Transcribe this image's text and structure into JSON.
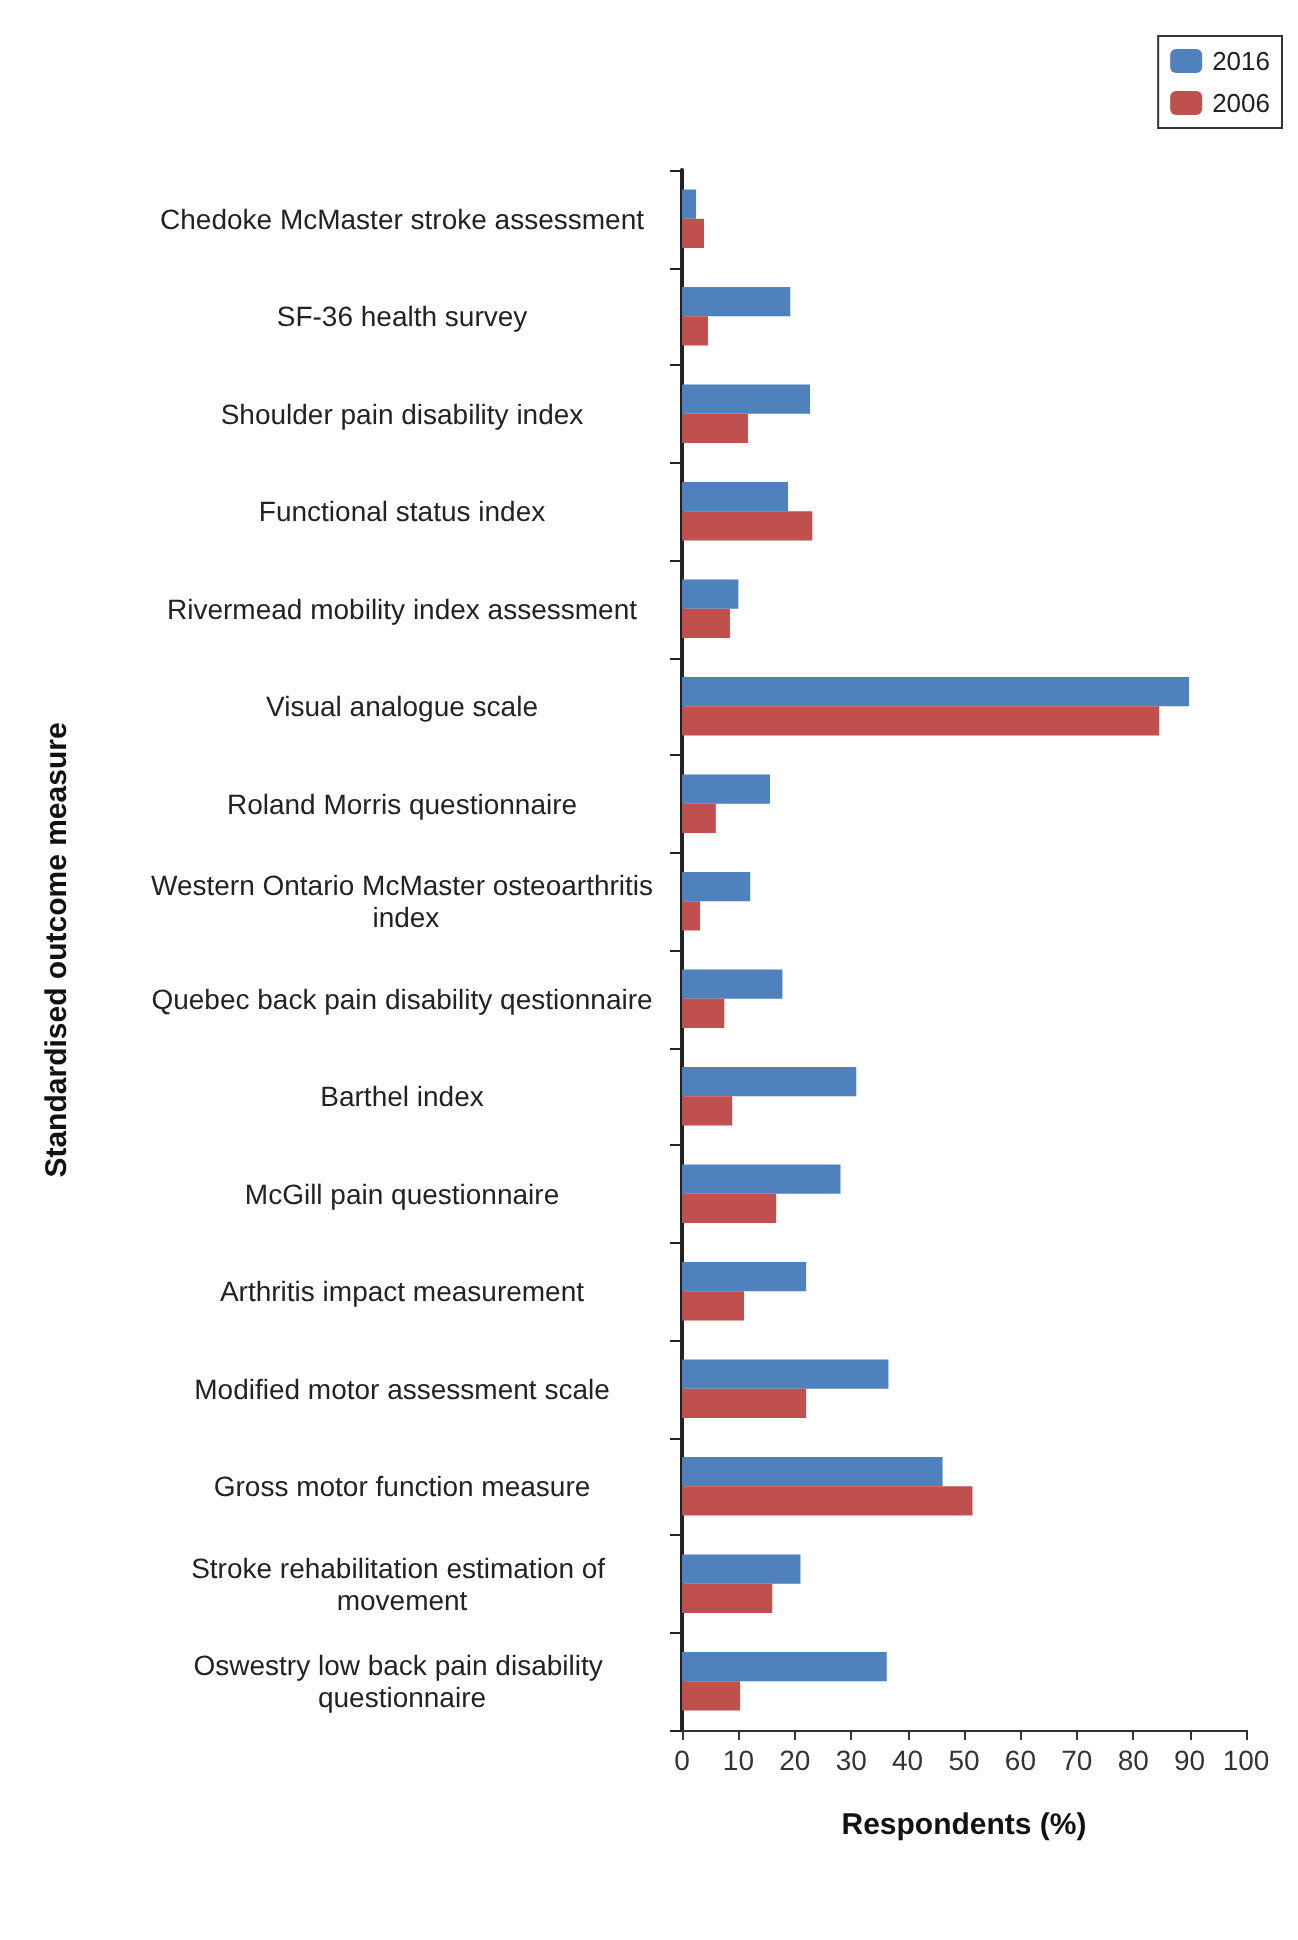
{
  "chart_data": {
    "type": "bar",
    "orientation": "horizontal",
    "xlabel": "Respondents (%)",
    "ylabel": "Standardised outcome measure",
    "categories": [
      "Chedoke McMaster stroke assessment",
      "SF-36 health survey",
      "Shoulder pain disability index",
      "Functional status index",
      "Rivermead mobility index assessment",
      "Visual analogue scale",
      "Roland Morris questionnaire",
      "Western Ontario McMaster osteoarthritis index",
      "Quebec back pain disability qestionnaire",
      "Barthel index",
      "McGill pain questionnaire",
      "Arthritis impact measurement",
      "Modified motor assessment scale",
      "Gross motor function measure",
      "Stroke rehabilitation estimation of movement",
      "Oswestry low back pain disability questionnaire"
    ],
    "series": [
      {
        "name": "2016",
        "color": "#4f81bd",
        "values": [
          2.5,
          19.2,
          22.7,
          18.8,
          10,
          89.9,
          15.6,
          12.1,
          17.8,
          30.9,
          28.1,
          22,
          36.6,
          46.2,
          21,
          36.3
        ]
      },
      {
        "name": "2006",
        "color": "#c0504d",
        "values": [
          3.9,
          4.6,
          11.7,
          23.1,
          8.5,
          84.6,
          6,
          3.2,
          7.5,
          8.9,
          16.7,
          11,
          22,
          51.5,
          16,
          10.3
        ]
      }
    ],
    "xlim": [
      0,
      100
    ],
    "xticks": [
      0,
      10,
      20,
      30,
      40,
      50,
      60,
      70,
      80,
      90,
      100
    ],
    "grid": false,
    "legend": "top right"
  }
}
